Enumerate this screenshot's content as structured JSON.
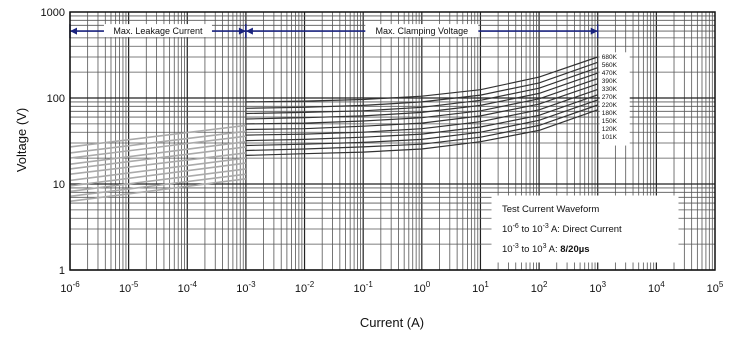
{
  "chart_data": {
    "type": "line",
    "xlabel": "Current (A)",
    "ylabel": "Voltage (V)",
    "x_scale": "log",
    "y_scale": "log",
    "xlim": [
      1e-06,
      100000
    ],
    "ylim": [
      1,
      1000
    ],
    "grid": true,
    "x_ticks": [
      {
        "base": "10",
        "exp": "-6",
        "value": 1e-06
      },
      {
        "base": "10",
        "exp": "-5",
        "value": 1e-05
      },
      {
        "base": "10",
        "exp": "-4",
        "value": 0.0001
      },
      {
        "base": "10",
        "exp": "-3",
        "value": 0.001
      },
      {
        "base": "10",
        "exp": "-2",
        "value": 0.01
      },
      {
        "base": "10",
        "exp": "-1",
        "value": 0.1
      },
      {
        "base": "10",
        "exp": "0",
        "value": 1
      },
      {
        "base": "10",
        "exp": "1",
        "value": 10
      },
      {
        "base": "10",
        "exp": "2",
        "value": 100
      },
      {
        "base": "10",
        "exp": "3",
        "value": 1000
      },
      {
        "base": "10",
        "exp": "4",
        "value": 10000
      },
      {
        "base": "10",
        "exp": "5",
        "value": 100000
      }
    ],
    "y_ticks": [
      {
        "label": "1000",
        "value": 1000
      },
      {
        "label": "100",
        "value": 100
      },
      {
        "label": "10",
        "value": 10
      },
      {
        "label": "1",
        "value": 1
      }
    ],
    "annotations": {
      "leakage": {
        "text": "Max. Leakage Current",
        "x_range": [
          1e-06,
          0.001
        ],
        "y": 600
      },
      "clamping": {
        "text": "Max. Clamping Voltage",
        "x_range": [
          0.001,
          1000
        ],
        "y": 600
      }
    },
    "info_box": {
      "title": "Test Current Waveform",
      "line1": {
        "a": "10",
        "a_exp": "-6",
        "mid": " to 10",
        "mid_exp": "-3",
        "tail": " A: Direct Current"
      },
      "line2": {
        "a": "10",
        "a_exp": "-3",
        "mid": " to 10",
        "mid_exp": "3",
        "tail": " A: ",
        "bold": "8/20µs"
      }
    },
    "leakage_color": "#aaaaaa",
    "clamp_color": "#333333",
    "series": [
      {
        "name": "680K",
        "leakage": [
          [
            1e-06,
            27
          ],
          [
            0.001,
            48
          ]
        ],
        "clamping": [
          [
            0.001,
            90
          ],
          [
            0.01,
            92
          ],
          [
            0.1,
            96
          ],
          [
            1,
            105
          ],
          [
            10,
            125
          ],
          [
            100,
            175
          ],
          [
            1000,
            300
          ]
        ]
      },
      {
        "name": "560K",
        "leakage": [
          [
            1e-06,
            23
          ],
          [
            0.001,
            41
          ]
        ],
        "clamping": [
          [
            0.001,
            76
          ],
          [
            0.01,
            78
          ],
          [
            0.1,
            82
          ],
          [
            1,
            90
          ],
          [
            10,
            108
          ],
          [
            100,
            150
          ],
          [
            1000,
            260
          ]
        ]
      },
      {
        "name": "470K",
        "leakage": [
          [
            1e-06,
            20
          ],
          [
            0.001,
            36
          ]
        ],
        "clamping": [
          [
            0.001,
            66
          ],
          [
            0.01,
            68
          ],
          [
            0.1,
            71
          ],
          [
            1,
            78
          ],
          [
            10,
            94
          ],
          [
            100,
            130
          ],
          [
            1000,
            225
          ]
        ]
      },
      {
        "name": "390K",
        "leakage": [
          [
            1e-06,
            17
          ],
          [
            0.001,
            31
          ]
        ],
        "clamping": [
          [
            0.001,
            57
          ],
          [
            0.01,
            59
          ],
          [
            0.1,
            62
          ],
          [
            1,
            68
          ],
          [
            10,
            82
          ],
          [
            100,
            113
          ],
          [
            1000,
            195
          ]
        ]
      },
      {
        "name": "330K",
        "leakage": [
          [
            1e-06,
            15
          ],
          [
            0.001,
            27
          ]
        ],
        "clamping": [
          [
            0.001,
            50
          ],
          [
            0.01,
            51
          ],
          [
            0.1,
            54
          ],
          [
            1,
            59
          ],
          [
            10,
            71
          ],
          [
            100,
            98
          ],
          [
            1000,
            168
          ]
        ]
      },
      {
        "name": "270K",
        "leakage": [
          [
            1e-06,
            13
          ],
          [
            0.001,
            23
          ]
        ],
        "clamping": [
          [
            0.001,
            43
          ],
          [
            0.01,
            44
          ],
          [
            0.1,
            47
          ],
          [
            1,
            51
          ],
          [
            10,
            62
          ],
          [
            100,
            85
          ],
          [
            1000,
            146
          ]
        ]
      },
      {
        "name": "220K",
        "leakage": [
          [
            1e-06,
            11
          ],
          [
            0.001,
            20
          ]
        ],
        "clamping": [
          [
            0.001,
            37
          ],
          [
            0.01,
            38
          ],
          [
            0.1,
            40
          ],
          [
            1,
            44
          ],
          [
            10,
            53
          ],
          [
            100,
            73
          ],
          [
            1000,
            126
          ]
        ]
      },
      {
        "name": "180K",
        "leakage": [
          [
            1e-06,
            9.5
          ],
          [
            0.001,
            17.5
          ]
        ],
        "clamping": [
          [
            0.001,
            32
          ],
          [
            0.01,
            33
          ],
          [
            0.1,
            35
          ],
          [
            1,
            38
          ],
          [
            10,
            46
          ],
          [
            100,
            63
          ],
          [
            1000,
            109
          ]
        ]
      },
      {
        "name": "150K",
        "leakage": [
          [
            1e-06,
            8.2
          ],
          [
            0.001,
            15
          ]
        ],
        "clamping": [
          [
            0.001,
            28
          ],
          [
            0.01,
            29
          ],
          [
            0.1,
            30.5
          ],
          [
            1,
            33
          ],
          [
            10,
            40
          ],
          [
            100,
            55
          ],
          [
            1000,
            95
          ]
        ]
      },
      {
        "name": "120K",
        "leakage": [
          [
            1e-06,
            7.2
          ],
          [
            0.001,
            13
          ]
        ],
        "clamping": [
          [
            0.001,
            24.5
          ],
          [
            0.01,
            25.5
          ],
          [
            0.1,
            27
          ],
          [
            1,
            29
          ],
          [
            10,
            35
          ],
          [
            100,
            48
          ],
          [
            1000,
            83
          ]
        ]
      },
      {
        "name": "101K",
        "leakage": [
          [
            1e-06,
            6.3
          ],
          [
            0.001,
            11.5
          ]
        ],
        "clamping": [
          [
            0.001,
            21.5
          ],
          [
            0.01,
            22.5
          ],
          [
            0.1,
            23.5
          ],
          [
            1,
            25.5
          ],
          [
            10,
            31
          ],
          [
            100,
            42
          ],
          [
            1000,
            73
          ]
        ]
      }
    ]
  }
}
